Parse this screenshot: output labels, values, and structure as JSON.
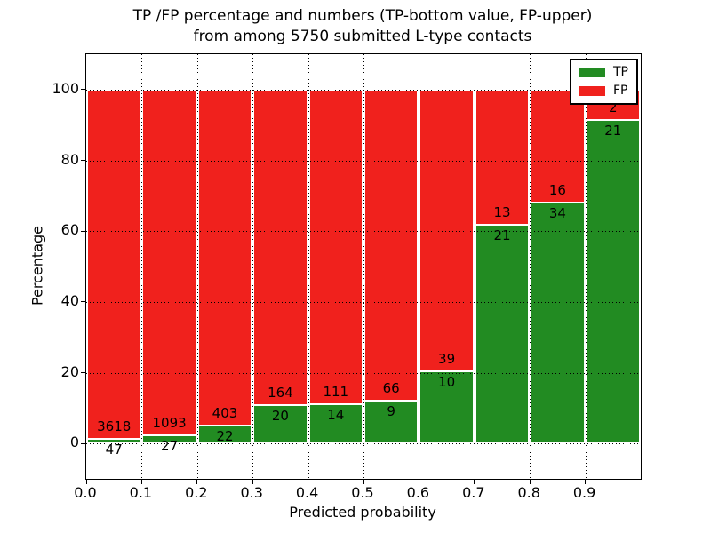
{
  "figure": {
    "title_line1": "TP /FP percentage and numbers (TP-bottom value, FP-upper)",
    "title_line2": "from among 5750 submitted L-type contacts"
  },
  "chart_data": {
    "type": "bar",
    "subtype": "stacked-percentage",
    "title": "TP /FP percentage and numbers (TP-bottom value, FP-upper) from among 5750 submitted L-type contacts",
    "xlabel": "Predicted probability",
    "ylabel": "Percentage",
    "xlim": [
      0.0,
      1.0
    ],
    "ylim": [
      -10,
      110
    ],
    "grid": true,
    "grid_style": "dotted",
    "legend_position": "upper right",
    "x_tick_labels": [
      "0.0",
      "0.1",
      "0.2",
      "0.3",
      "0.4",
      "0.5",
      "0.6",
      "0.7",
      "0.8",
      "0.9"
    ],
    "y_tick_values": [
      0,
      20,
      40,
      60,
      80,
      100
    ],
    "y_tick_labels": [
      "0",
      "20",
      "40",
      "60",
      "80",
      "100"
    ],
    "categories": [
      "0.0-0.1",
      "0.1-0.2",
      "0.2-0.3",
      "0.3-0.4",
      "0.4-0.5",
      "0.5-0.6",
      "0.6-0.7",
      "0.7-0.8",
      "0.8-0.9",
      "0.9-1.0"
    ],
    "series": [
      {
        "name": "TP",
        "color": "#228b22",
        "counts": [
          47,
          27,
          22,
          20,
          14,
          9,
          10,
          21,
          34,
          21
        ]
      },
      {
        "name": "FP",
        "color": "#f0211d",
        "counts": [
          3618,
          1093,
          403,
          164,
          111,
          66,
          39,
          13,
          16,
          2
        ]
      }
    ],
    "tp_percentages": [
      1.28,
      2.41,
      5.18,
      10.87,
      11.2,
      12.0,
      20.41,
      61.76,
      68.0,
      91.3
    ],
    "total_submitted": 5750,
    "label_rule": "FP count printed above TP/FP boundary, TP count printed below boundary"
  },
  "legend": {
    "items": [
      {
        "label": "TP",
        "color": "#228b22"
      },
      {
        "label": "FP",
        "color": "#f0211d"
      }
    ]
  }
}
